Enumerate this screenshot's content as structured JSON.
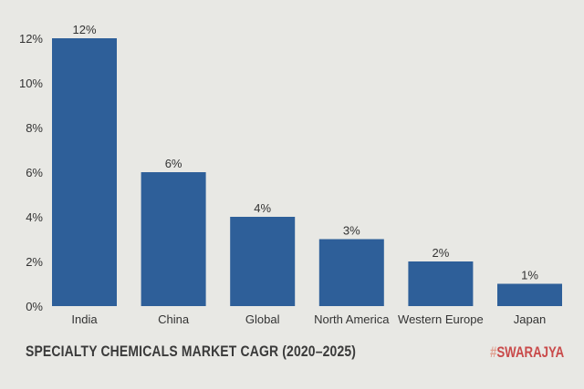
{
  "chart_data": {
    "type": "bar",
    "title": "SPECIALTY CHEMICALS MARKET CAGR (2020–2025)",
    "categories": [
      "India",
      "China",
      "Global",
      "North America",
      "Western Europe",
      "Japan"
    ],
    "values": [
      12,
      6,
      4,
      3,
      2,
      1
    ],
    "data_labels": [
      "12%",
      "6%",
      "4%",
      "3%",
      "2%",
      "1%"
    ],
    "yticks": [
      "0%",
      "2%",
      "4%",
      "6%",
      "8%",
      "10%",
      "12%"
    ],
    "ylim": [
      0,
      12
    ],
    "grid": false,
    "xlabel": "",
    "ylabel": "",
    "colors": {
      "bar": "#2e5f99",
      "background": "#e8e8e4",
      "text": "#333333"
    }
  },
  "branding": {
    "hash": "#",
    "name": "SWARAJYA"
  }
}
